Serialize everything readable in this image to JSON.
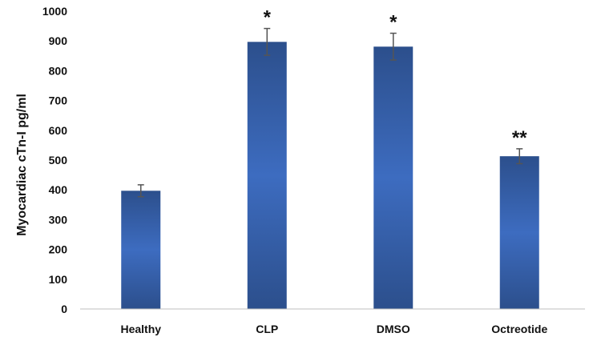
{
  "chart_data": {
    "type": "bar",
    "title": "",
    "xlabel": "",
    "ylabel": "Myocardiac cTn-I pg/ml",
    "ylim": [
      0,
      1000
    ],
    "yticks": [
      0,
      100,
      200,
      300,
      400,
      500,
      600,
      700,
      800,
      900,
      1000
    ],
    "categories": [
      "Healthy",
      "CLP",
      "DMSO",
      "Octreotide"
    ],
    "values": [
      397,
      897,
      881,
      513
    ],
    "errors": [
      20,
      45,
      45,
      25
    ],
    "annotations": [
      "",
      "*",
      "*",
      "**"
    ],
    "grid": false,
    "legend": "none",
    "colors": {
      "bar_dark": "#2c4f8c",
      "bar_light": "#3d6cc0",
      "error_bar": "#555555",
      "axis": "#bfbfbf"
    }
  }
}
